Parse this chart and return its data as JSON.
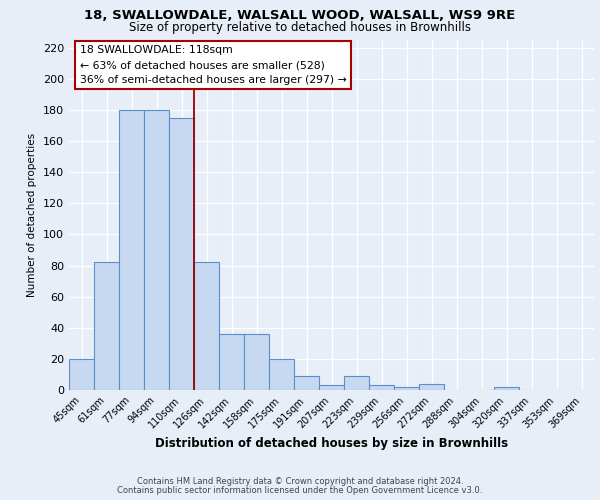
{
  "title1": "18, SWALLOWDALE, WALSALL WOOD, WALSALL, WS9 9RE",
  "title2": "Size of property relative to detached houses in Brownhills",
  "xlabel": "Distribution of detached houses by size in Brownhills",
  "ylabel": "Number of detached properties",
  "bar_labels": [
    "45sqm",
    "61sqm",
    "77sqm",
    "94sqm",
    "110sqm",
    "126sqm",
    "142sqm",
    "158sqm",
    "175sqm",
    "191sqm",
    "207sqm",
    "223sqm",
    "239sqm",
    "256sqm",
    "272sqm",
    "288sqm",
    "304sqm",
    "320sqm",
    "337sqm",
    "353sqm",
    "369sqm"
  ],
  "bar_values": [
    20,
    82,
    180,
    180,
    175,
    82,
    36,
    36,
    20,
    9,
    3,
    9,
    3,
    2,
    4,
    0,
    0,
    2,
    0,
    0,
    0
  ],
  "bar_color": "#c6d9f0",
  "bar_edge_color": "#5b8fc9",
  "red_line_x": 4.5,
  "ylim": [
    0,
    225
  ],
  "yticks": [
    0,
    20,
    40,
    60,
    80,
    100,
    120,
    140,
    160,
    180,
    200,
    220
  ],
  "annotation_line1": "18 SWALLOWDALE: 118sqm",
  "annotation_line2": "← 63% of detached houses are smaller (528)",
  "annotation_line3": "36% of semi-detached houses are larger (297) →",
  "footer1": "Contains HM Land Registry data © Crown copyright and database right 2024.",
  "footer2": "Contains public sector information licensed under the Open Government Licence v3.0.",
  "background_color": "#e8eef8",
  "grid_color": "#d0d8e8"
}
